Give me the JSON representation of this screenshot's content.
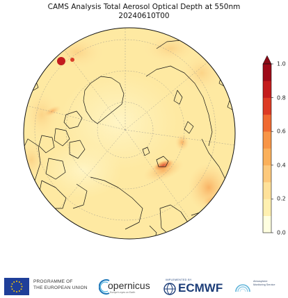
{
  "header": {
    "title_line1": "CAMS Analysis Total Aerosol Optical Depth at 550nm",
    "title_line2": "20240610T00"
  },
  "colorbar": {
    "ticks": [
      "1.0",
      "0.8",
      "0.6",
      "0.4",
      "0.2",
      "0.0"
    ],
    "tick_values": [
      1.0,
      0.8,
      0.6,
      0.4,
      0.2,
      0.0
    ],
    "range": [
      0.0,
      1.0
    ],
    "extend": "max",
    "colors": [
      "#ffffe0",
      "#fff0b0",
      "#ffe199",
      "#fdc97c",
      "#fbb05a",
      "#f89546",
      "#f06a31",
      "#dd3b24",
      "#c41c1c",
      "#9e0a18"
    ]
  },
  "map": {
    "projection": "north polar stereographic",
    "background_color": "#fee9a2",
    "coastline_color": "#111111",
    "graticule_style": "dashed"
  },
  "footer": {
    "eu_line1": "PROGRAMME OF",
    "eu_line2": "THE EUROPEAN UNION",
    "copernicus": "opernicus",
    "copernicus_sub": "Europe's eyes on Earth",
    "ecmwf_pre": "IMPLEMENTED BY",
    "ecmwf": "ECMWF",
    "cams_line1": "Atmosphere",
    "cams_line2": "Monitoring Service"
  }
}
